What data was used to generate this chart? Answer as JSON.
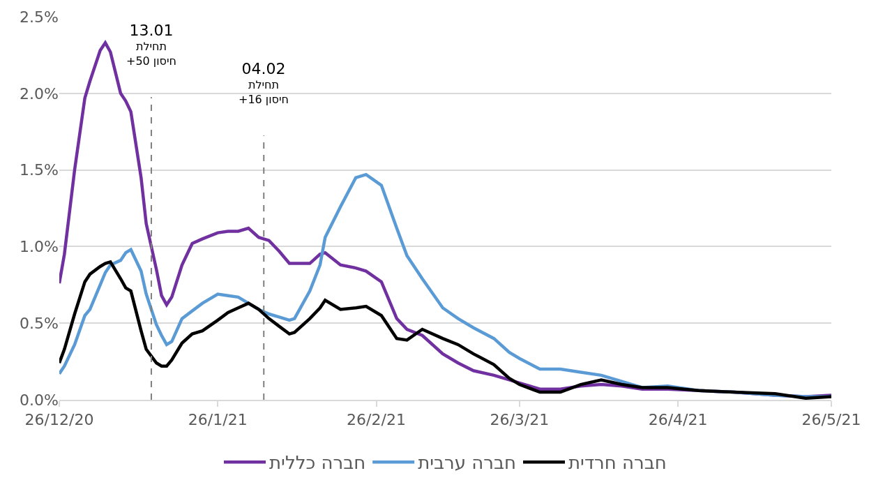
{
  "chart_data": {
    "type": "line",
    "x": [
      "2020-12-26",
      "2020-12-27",
      "2020-12-29",
      "2020-12-31",
      "2021-01-01",
      "2021-01-03",
      "2021-01-04",
      "2021-01-05",
      "2021-01-07",
      "2021-01-08",
      "2021-01-09",
      "2021-01-11",
      "2021-01-12",
      "2021-01-14",
      "2021-01-15",
      "2021-01-16",
      "2021-01-17",
      "2021-01-19",
      "2021-01-21",
      "2021-01-23",
      "2021-01-26",
      "2021-01-28",
      "2021-01-30",
      "2021-02-01",
      "2021-02-03",
      "2021-02-05",
      "2021-02-07",
      "2021-02-09",
      "2021-02-10",
      "2021-02-13",
      "2021-02-15",
      "2021-02-16",
      "2021-02-19",
      "2021-02-22",
      "2021-02-24",
      "2021-02-27",
      "2021-03-02",
      "2021-03-04",
      "2021-03-07",
      "2021-03-11",
      "2021-03-14",
      "2021-03-17",
      "2021-03-21",
      "2021-03-24",
      "2021-03-26",
      "2021-03-30",
      "2021-04-03",
      "2021-04-07",
      "2021-04-11",
      "2021-04-15",
      "2021-04-19",
      "2021-04-24",
      "2021-04-30",
      "2021-05-07",
      "2021-05-15",
      "2021-05-21",
      "2021-05-26"
    ],
    "series": [
      {
        "name": "חברה כללית",
        "color": "#7030a0",
        "values": [
          0.76,
          0.95,
          1.5,
          1.97,
          2.08,
          2.28,
          2.33,
          2.27,
          2.0,
          1.95,
          1.88,
          1.45,
          1.15,
          0.85,
          0.68,
          0.62,
          0.67,
          0.88,
          1.02,
          1.05,
          1.09,
          1.1,
          1.1,
          1.12,
          1.06,
          1.04,
          0.97,
          0.89,
          0.89,
          0.89,
          0.95,
          0.96,
          0.88,
          0.86,
          0.84,
          0.77,
          0.53,
          0.46,
          0.42,
          0.3,
          0.24,
          0.19,
          0.16,
          0.13,
          0.11,
          0.07,
          0.07,
          0.09,
          0.1,
          0.09,
          0.07,
          0.07,
          0.06,
          0.05,
          0.03,
          0.02,
          0.03
        ]
      },
      {
        "name": "חברה ערבית",
        "color": "#5b9bd5",
        "values": [
          0.17,
          0.22,
          0.36,
          0.55,
          0.59,
          0.75,
          0.83,
          0.88,
          0.91,
          0.96,
          0.98,
          0.84,
          0.69,
          0.49,
          0.42,
          0.36,
          0.38,
          0.53,
          0.58,
          0.63,
          0.69,
          0.68,
          0.67,
          0.63,
          0.59,
          0.56,
          0.54,
          0.52,
          0.53,
          0.71,
          0.88,
          1.06,
          1.26,
          1.45,
          1.47,
          1.4,
          1.12,
          0.94,
          0.79,
          0.6,
          0.53,
          0.47,
          0.4,
          0.31,
          0.27,
          0.2,
          0.2,
          0.18,
          0.16,
          0.12,
          0.08,
          0.09,
          0.06,
          0.05,
          0.03,
          0.02,
          0.02
        ]
      },
      {
        "name": "חברה חרדית",
        "color": "#000000",
        "values": [
          0.24,
          0.33,
          0.56,
          0.77,
          0.82,
          0.87,
          0.89,
          0.9,
          0.79,
          0.73,
          0.71,
          0.45,
          0.33,
          0.24,
          0.22,
          0.22,
          0.26,
          0.37,
          0.43,
          0.45,
          0.52,
          0.57,
          0.6,
          0.63,
          0.59,
          0.53,
          0.48,
          0.43,
          0.44,
          0.53,
          0.6,
          0.65,
          0.59,
          0.6,
          0.61,
          0.55,
          0.4,
          0.39,
          0.46,
          0.4,
          0.36,
          0.3,
          0.23,
          0.14,
          0.1,
          0.05,
          0.05,
          0.1,
          0.13,
          0.1,
          0.08,
          0.08,
          0.06,
          0.05,
          0.04,
          0.01,
          0.02
        ]
      }
    ],
    "xlim": [
      "2020-12-26",
      "2021-05-26"
    ],
    "xticks": [
      {
        "value": "2020-12-26",
        "label": "26/12/20"
      },
      {
        "value": "2021-01-26",
        "label": "26/1/21"
      },
      {
        "value": "2021-02-26",
        "label": "26/2/21"
      },
      {
        "value": "2021-03-26",
        "label": "26/3/21"
      },
      {
        "value": "2021-04-26",
        "label": "26/4/21"
      },
      {
        "value": "2021-05-26",
        "label": "26/5/21"
      }
    ],
    "ylim": [
      0,
      2.5
    ],
    "yticks": [
      {
        "value": 0,
        "label": "0.0%"
      },
      {
        "value": 0.5,
        "label": "0.5%"
      },
      {
        "value": 1,
        "label": "1.0%"
      },
      {
        "value": 1.5,
        "label": "1.5%"
      },
      {
        "value": 2,
        "label": "2.0%"
      },
      {
        "value": 2.5,
        "label": "2.5%"
      }
    ],
    "ref_lines": [
      {
        "axis": "x",
        "value": "2021-01-13",
        "label": "13.01\nתחילת\n+50 חיסון",
        "color": "#7f7f7f",
        "line_style": "dashed"
      },
      {
        "axis": "x",
        "value": "2021-02-04",
        "label": "04.02\nתחילת\n+16 חיסון",
        "color": "#7f7f7f",
        "line_style": "dashed"
      }
    ],
    "grid": "y",
    "legend": "bottom",
    "marker": "none",
    "line_style": "solid"
  }
}
